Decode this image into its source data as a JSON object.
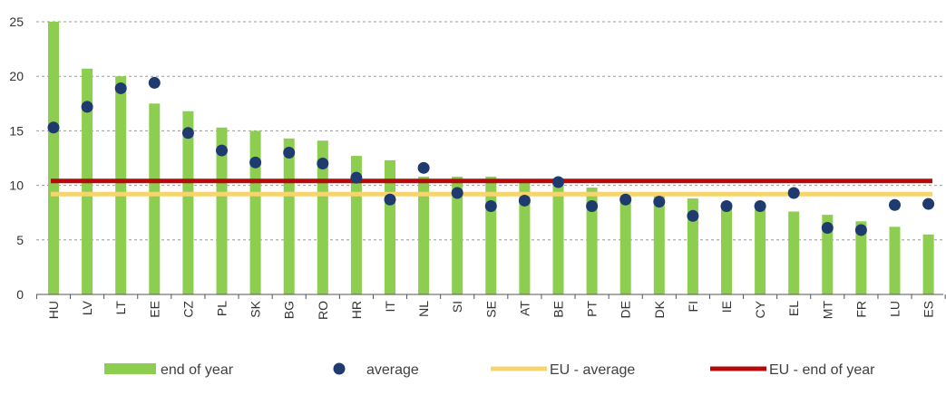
{
  "chart_data": {
    "type": "bar",
    "title": "",
    "xlabel": "",
    "ylabel": "",
    "ylim": [
      0,
      25
    ],
    "yticks": [
      0,
      5,
      10,
      15,
      20,
      25
    ],
    "grid": "horizontal dashed",
    "legend_position": "bottom",
    "categories": [
      "HU",
      "LV",
      "LT",
      "EE",
      "CZ",
      "PL",
      "SK",
      "BG",
      "RO",
      "HR",
      "IT",
      "NL",
      "SI",
      "SE",
      "AT",
      "BE",
      "PT",
      "DE",
      "DK",
      "FI",
      "IE",
      "CY",
      "EL",
      "MT",
      "FR",
      "LU",
      "ES"
    ],
    "series": [
      {
        "name": "end of year",
        "kind": "bar",
        "color": "#8dcd4f",
        "values": [
          25.0,
          20.7,
          20.0,
          17.5,
          16.8,
          15.3,
          15.0,
          14.3,
          14.1,
          12.7,
          12.3,
          10.8,
          10.8,
          10.8,
          10.4,
          10.2,
          9.8,
          9.4,
          9.3,
          8.8,
          8.0,
          7.8,
          7.6,
          7.3,
          6.7,
          6.2,
          5.5
        ]
      },
      {
        "name": "average",
        "kind": "marker",
        "color": "#1f3a6e",
        "values": [
          15.3,
          17.2,
          18.9,
          19.4,
          14.8,
          13.2,
          12.1,
          13.0,
          12.0,
          10.7,
          8.7,
          11.6,
          9.3,
          8.1,
          8.6,
          10.3,
          8.1,
          8.7,
          8.5,
          7.2,
          8.1,
          8.1,
          9.3,
          6.1,
          5.9,
          8.2,
          8.3
        ]
      },
      {
        "name": "EU - average",
        "kind": "hline",
        "color": "#f7d56e",
        "value": 9.2
      },
      {
        "name": "EU - end of year",
        "kind": "hline",
        "color": "#b40a0a",
        "value": 10.4
      }
    ]
  }
}
